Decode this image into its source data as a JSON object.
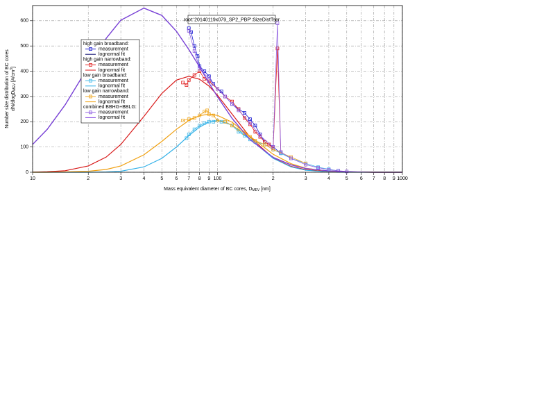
{
  "chart_data": {
    "type": "line",
    "title": "root:'20140119x079_SP2_PBP':SizeDistTser",
    "x_label": {
      "text": "Mass equivalent diameter of BC cores, D",
      "sub": "MEV",
      "tail": " [nm]"
    },
    "y_label": {
      "line1": "Number size distribution of BC cores",
      "text": "dN/dlogD",
      "sub": "MEV",
      "tail": " [#/cm",
      "sup": "3",
      "end": "]"
    },
    "log_x": true,
    "grid": true,
    "xlim": [
      10,
      1000
    ],
    "ylim": [
      0,
      660
    ],
    "xticks": [
      10,
      {
        "value": 20,
        "label": "2"
      },
      {
        "value": 30,
        "label": "3"
      },
      {
        "value": 40,
        "label": "4"
      },
      {
        "value": 50,
        "label": "5"
      },
      {
        "value": 60,
        "label": "6"
      },
      {
        "value": 70,
        "label": "7"
      },
      {
        "value": 80,
        "label": "8"
      },
      {
        "value": 90,
        "label": "9"
      },
      100,
      {
        "value": 200,
        "label": "2"
      },
      {
        "value": 300,
        "label": "3"
      },
      {
        "value": 400,
        "label": "4"
      },
      {
        "value": 500,
        "label": "5"
      },
      {
        "value": 600,
        "label": "6"
      },
      {
        "value": 700,
        "label": "7"
      },
      {
        "value": 800,
        "label": "8"
      },
      {
        "value": 900,
        "label": "9"
      },
      1000
    ],
    "yticks": [
      0,
      100,
      200,
      300,
      400,
      500,
      600
    ],
    "groups": [
      {
        "label": "high gain broadband:",
        "series": [
          {
            "name": "measurement",
            "style": "markers",
            "color": "#1a1ad0",
            "x": [
              70,
              72,
              75,
              78,
              80,
              85,
              90,
              95,
              100,
              105,
              110,
              120,
              130,
              140,
              150,
              160,
              170,
              180,
              200,
              220
            ],
            "values": [
              570,
              555,
              500,
              460,
              420,
              400,
              380,
              350,
              330,
              320,
              300,
              270,
              250,
              235,
              210,
              185,
              150,
              120,
              100,
              75
            ]
          },
          {
            "name": "lognormal fit",
            "style": "line",
            "color": "#101070",
            "x": [
              10,
              12,
              15,
              20,
              25,
              30,
              40,
              50,
              60,
              70,
              80,
              90,
              100,
              120,
              150,
              200,
              250,
              300,
              400,
              500,
              700,
              1000
            ],
            "values": [
              110,
              170,
              267,
              417,
              530,
              602,
              650,
              621,
              558,
              486,
              417,
              353,
              299,
              213,
              129,
              59,
              29,
              15,
              5,
              2,
              0,
              0
            ]
          }
        ]
      },
      {
        "label": "high gain narrowband:",
        "series": [
          {
            "name": "measurement",
            "style": "markers",
            "color": "#e02020",
            "x": [
              65,
              68,
              70,
              75,
              80,
              85,
              90,
              100,
              110,
              120,
              130,
              140,
              150,
              160,
              170,
              180,
              190,
              200,
              211,
              220,
              250
            ],
            "values": [
              355,
              345,
              365,
              385,
              400,
              370,
              360,
              330,
              300,
              280,
              250,
              215,
              190,
              160,
              140,
              120,
              110,
              95,
              490,
              80,
              55
            ]
          },
          {
            "name": "lognormal fit",
            "style": "line",
            "color": "#d81818",
            "x": [
              10,
              12,
              15,
              20,
              25,
              30,
              40,
              50,
              60,
              70,
              80,
              90,
              100,
              120,
              150,
              200,
              250,
              300,
              400,
              500,
              700,
              1000
            ],
            "values": [
              0.5,
              2,
              6,
              25,
              60,
              110,
              221,
              312,
              365,
              380,
              368,
              341,
              305,
              230,
              139,
              56,
              23,
              10,
              2,
              0.6,
              0,
              0
            ]
          }
        ]
      },
      {
        "label": "low gain broadband:",
        "series": [
          {
            "name": "measurement",
            "style": "markers",
            "color": "#40b8e8",
            "x": [
              68,
              70,
              75,
              80,
              85,
              90,
              95,
              100,
              105,
              110,
              120,
              130,
              140,
              150,
              160,
              180,
              200,
              220,
              250,
              300,
              350,
              400,
              450
            ],
            "values": [
              135,
              150,
              170,
              185,
              195,
              200,
              200,
              205,
              200,
              200,
              185,
              160,
              145,
              130,
              120,
              110,
              90,
              75,
              55,
              35,
              20,
              12,
              5
            ]
          },
          {
            "name": "lognormal fit",
            "style": "line",
            "color": "#30b0e8",
            "x": [
              10,
              12,
              15,
              20,
              25,
              30,
              40,
              50,
              60,
              70,
              80,
              90,
              100,
              120,
              150,
              200,
              250,
              300,
              400,
              500,
              700,
              1000
            ],
            "values": [
              0,
              0,
              0,
              0,
              1,
              4,
              21,
              55,
              100,
              145,
              179,
              199,
              205,
              187,
              131,
              55,
              21,
              8,
              1,
              0,
              0,
              0
            ]
          }
        ]
      },
      {
        "label": "low gain narrowband:",
        "series": [
          {
            "name": "measurement",
            "style": "markers",
            "color": "#f0a820",
            "x": [
              65,
              70,
              75,
              80,
              85,
              88,
              90,
              95,
              100,
              110,
              120,
              130,
              140,
              150,
              160,
              180,
              200,
              250,
              300
            ],
            "values": [
              205,
              210,
              215,
              225,
              240,
              245,
              230,
              225,
              205,
              200,
              185,
              170,
              155,
              140,
              125,
              110,
              90,
              60,
              35
            ]
          },
          {
            "name": "lognormal fit",
            "style": "line",
            "color": "#f0a010",
            "x": [
              10,
              12,
              15,
              20,
              25,
              30,
              40,
              50,
              60,
              70,
              80,
              90,
              100,
              120,
              150,
              200,
              250,
              300,
              400,
              500,
              700,
              1000
            ],
            "values": [
              0,
              0,
              1,
              4,
              11,
              25,
              69,
              122,
              170,
              205,
              224,
              230,
              225,
              198,
              142,
              71,
              34,
              16,
              4,
              1,
              0,
              0
            ]
          }
        ]
      },
      {
        "label": "combined BBHG+BBLG:",
        "series": [
          {
            "name": "measurement",
            "style": "markers",
            "color": "#9060e0",
            "x": [
              70,
              75,
              80,
              90,
              100,
              110,
              120,
              130,
              150,
              170,
              200,
              211,
              220,
              250,
              300,
              350,
              400,
              450,
              500
            ],
            "values": [
              560,
              480,
              410,
              370,
              330,
              300,
              270,
              245,
              195,
              145,
              100,
              590,
              80,
              55,
              30,
              18,
              10,
              6,
              3
            ]
          },
          {
            "name": "lognormal fit",
            "style": "line",
            "color": "#8040e0",
            "x": [
              10,
              12,
              15,
              20,
              25,
              30,
              40,
              50,
              60,
              70,
              80,
              90,
              100,
              120,
              150,
              200,
              250,
              300,
              400,
              500,
              700,
              1000
            ],
            "values": [
              110,
              170,
              267,
              417,
              530,
              602,
              650,
              621,
              558,
              486,
              417,
              353,
              299,
              213,
              129,
              59,
              29,
              15,
              5,
              2,
              0,
              0
            ]
          }
        ]
      }
    ]
  }
}
